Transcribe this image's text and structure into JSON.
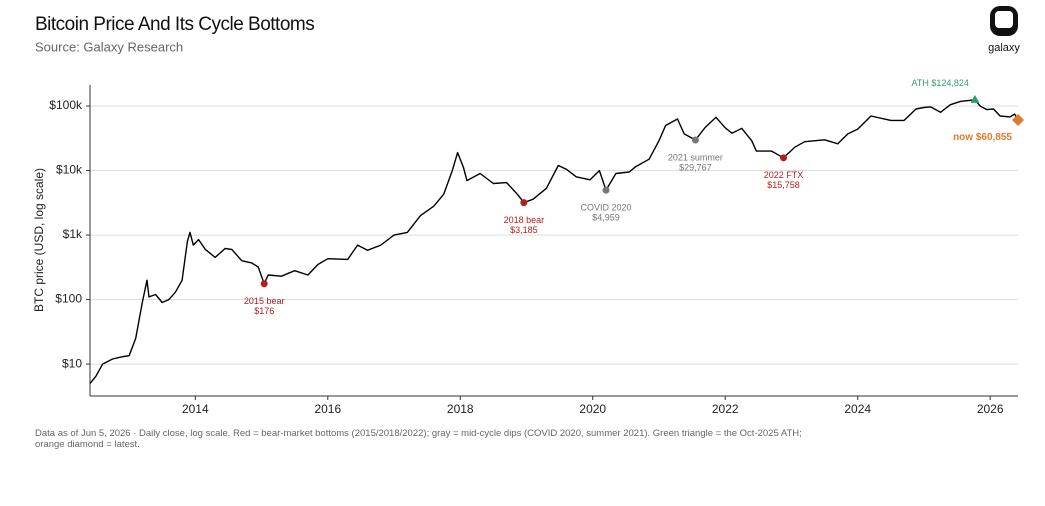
{
  "chart_data": {
    "type": "line",
    "title": "Bitcoin Price And Its Cycle Bottoms",
    "subtitle": "Source: Galaxy Research",
    "brand": "galaxy",
    "y_label": "BTC price (USD, log scale)",
    "log_y": true,
    "grid": true,
    "xlim": [
      2012.41,
      2026.42
    ],
    "xticks": [
      2014,
      2016,
      2018,
      2020,
      2022,
      2024,
      2026
    ],
    "ylim": [
      3.2,
      212000
    ],
    "yticks": [
      {
        "value": 10,
        "label": "$10"
      },
      {
        "value": 100,
        "label": "$100"
      },
      {
        "value": 1000,
        "label": "$1k"
      },
      {
        "value": 10000,
        "label": "$10k"
      },
      {
        "value": 100000,
        "label": "$100k"
      }
    ],
    "series": [
      {
        "color": "#000000",
        "x": [
          2012.41,
          2012.5,
          2012.6,
          2012.75,
          2012.9,
          2013.0,
          2013.1,
          2013.2,
          2013.27,
          2013.3,
          2013.4,
          2013.5,
          2013.6,
          2013.7,
          2013.8,
          2013.88,
          2013.92,
          2013.97,
          2014.05,
          2014.15,
          2014.3,
          2014.45,
          2014.55,
          2014.7,
          2014.85,
          2014.95,
          2015.04,
          2015.1,
          2015.3,
          2015.5,
          2015.7,
          2015.85,
          2016.0,
          2016.3,
          2016.45,
          2016.6,
          2016.8,
          2017.0,
          2017.2,
          2017.4,
          2017.6,
          2017.75,
          2017.88,
          2017.96,
          2018.05,
          2018.1,
          2018.3,
          2018.5,
          2018.7,
          2018.87,
          2018.96,
          2019.1,
          2019.3,
          2019.48,
          2019.6,
          2019.75,
          2019.96,
          2020.1,
          2020.2,
          2020.35,
          2020.55,
          2020.65,
          2020.85,
          2021.0,
          2021.1,
          2021.28,
          2021.38,
          2021.55,
          2021.7,
          2021.86,
          2022.0,
          2022.1,
          2022.25,
          2022.4,
          2022.47,
          2022.7,
          2022.88,
          2023.05,
          2023.2,
          2023.5,
          2023.7,
          2023.85,
          2024.0,
          2024.2,
          2024.5,
          2024.7,
          2024.88,
          2025.0,
          2025.1,
          2025.25,
          2025.4,
          2025.55,
          2025.77,
          2025.85,
          2025.95,
          2026.05,
          2026.15,
          2026.3,
          2026.37,
          2026.42
        ],
        "values": [
          5,
          6.5,
          10,
          12,
          13,
          13.5,
          25,
          90,
          200,
          110,
          120,
          90,
          100,
          130,
          200,
          800,
          1100,
          700,
          850,
          600,
          450,
          620,
          600,
          400,
          370,
          320,
          176,
          240,
          230,
          280,
          240,
          350,
          430,
          420,
          700,
          580,
          700,
          1000,
          1100,
          2000,
          2800,
          4300,
          10000,
          19000,
          11000,
          7000,
          9000,
          6300,
          6500,
          4200,
          3185,
          3600,
          5300,
          12000,
          10500,
          8000,
          7200,
          10000,
          4959,
          9000,
          9500,
          11500,
          15000,
          29000,
          50000,
          63000,
          37000,
          29767,
          47000,
          67000,
          46000,
          38000,
          45000,
          29000,
          20000,
          20000,
          15758,
          23000,
          28000,
          30000,
          26000,
          37000,
          44000,
          70000,
          60000,
          60000,
          90000,
          95000,
          97000,
          80000,
          105000,
          118000,
          124824,
          100000,
          88000,
          90000,
          70000,
          68000,
          75000,
          60855
        ]
      }
    ],
    "annotations": [
      {
        "label": "2015 bear",
        "value_label": "$176",
        "x": 2015.04,
        "value": 176,
        "color": "#b3201c",
        "marker": "circle"
      },
      {
        "label": "2018 bear",
        "value_label": "$3,185",
        "x": 2018.96,
        "value": 3185,
        "color": "#b3201c",
        "marker": "circle"
      },
      {
        "label": "COVID 2020",
        "value_label": "$4,959",
        "x": 2020.2,
        "value": 4959,
        "color": "#777777",
        "marker": "circle"
      },
      {
        "label": "2021 summer",
        "value_label": "$29,767",
        "x": 2021.55,
        "value": 29767,
        "color": "#777777",
        "marker": "circle"
      },
      {
        "label": "2022 FTX",
        "value_label": "$15,758",
        "x": 2022.88,
        "value": 15758,
        "color": "#b3201c",
        "marker": "circle"
      },
      {
        "label": "ATH",
        "value_label": "$124,824",
        "x": 2025.77,
        "value": 124824,
        "color": "#2e9e6b",
        "marker": "triangle"
      },
      {
        "label": "now",
        "value_label": "$60,855",
        "x": 2026.42,
        "value": 60855,
        "color": "#e07b2a",
        "marker": "diamond"
      }
    ],
    "footnote": "Data as of Jun 5, 2026 · Daily close, log scale. Red = bear-market bottoms (2015/2018/2022); gray = mid-cycle dips (COVID 2020, summer 2021). Green triangle = the Oct-2025 ATH; orange diamond = latest."
  }
}
